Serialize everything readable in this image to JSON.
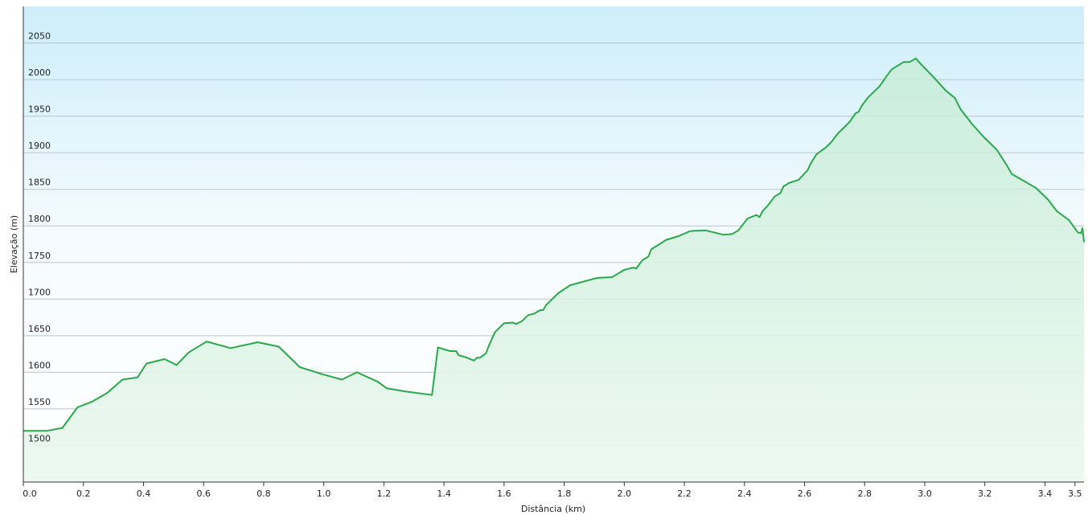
{
  "chart_data": {
    "type": "area-line",
    "x_label": "Distância  (km)",
    "y_label": "Elevação (m)",
    "color": "#2aa84a",
    "xlim": [
      0,
      3.53
    ],
    "ylim": [
      1450,
      2100
    ],
    "xticks": [
      {
        "value": 0,
        "label": "0.0"
      },
      0.2,
      0.4,
      0.6,
      0.8,
      {
        "value": 1,
        "label": "1.0"
      },
      1.2,
      1.4,
      1.6,
      1.8,
      {
        "value": 2,
        "label": "2.0"
      },
      2.2,
      2.4,
      2.6,
      2.8,
      {
        "value": 3,
        "label": "3.0"
      },
      3.2,
      3.4,
      3.5
    ],
    "yticks": [
      1500,
      1550,
      1600,
      1650,
      1700,
      1750,
      1800,
      1850,
      1900,
      1950,
      2000,
      2050
    ],
    "grid": true,
    "x": [
      0,
      0.08,
      0.13,
      0.18,
      0.23,
      0.28,
      0.33,
      0.38,
      0.41,
      0.47,
      0.51,
      0.55,
      0.61,
      0.69,
      0.78,
      0.85,
      0.92,
      0.99,
      1.06,
      1.11,
      1.18,
      1.21,
      1.27,
      1.36,
      1.38,
      1.42,
      1.44,
      1.45,
      1.47,
      1.5,
      1.51,
      1.52,
      1.54,
      1.55,
      1.57,
      1.6,
      1.63,
      1.64,
      1.66,
      1.68,
      1.7,
      1.72,
      1.73,
      1.74,
      1.78,
      1.82,
      1.91,
      1.96,
      2.0,
      2.03,
      2.04,
      2.06,
      2.08,
      2.09,
      2.14,
      2.18,
      2.22,
      2.27,
      2.33,
      2.36,
      2.38,
      2.41,
      2.44,
      2.45,
      2.46,
      2.48,
      2.5,
      2.52,
      2.53,
      2.55,
      2.58,
      2.61,
      2.62,
      2.64,
      2.67,
      2.69,
      2.71,
      2.75,
      2.77,
      2.78,
      2.79,
      2.81,
      2.85,
      2.87,
      2.89,
      2.93,
      2.95,
      2.97,
      2.99,
      3.03,
      3.07,
      3.1,
      3.12,
      3.16,
      3.2,
      3.24,
      3.27,
      3.29,
      3.37,
      3.41,
      3.44,
      3.48,
      3.51,
      3.52,
      3.525,
      3.53
    ],
    "values": [
      1520,
      1520,
      1524,
      1552,
      1560,
      1572,
      1590,
      1593,
      1612,
      1618,
      1610,
      1627,
      1642,
      1633,
      1641,
      1635,
      1607,
      1598,
      1590,
      1600,
      1587,
      1578,
      1574,
      1569,
      1634,
      1629,
      1629,
      1623,
      1621,
      1616,
      1620,
      1620,
      1626,
      1637,
      1655,
      1667,
      1668,
      1666,
      1670,
      1678,
      1680,
      1685,
      1685,
      1692,
      1708,
      1719,
      1729,
      1730,
      1740,
      1743,
      1742,
      1753,
      1758,
      1768,
      1781,
      1786,
      1793,
      1794,
      1788,
      1789,
      1794,
      1810,
      1815,
      1812,
      1820,
      1829,
      1840,
      1845,
      1854,
      1859,
      1863,
      1876,
      1885,
      1898,
      1907,
      1915,
      1926,
      1942,
      1954,
      1956,
      1964,
      1975,
      1991,
      2003,
      2014,
      2024,
      2024,
      2029,
      2020,
      2003,
      1985,
      1975,
      1959,
      1938,
      1920,
      1904,
      1885,
      1871,
      1852,
      1836,
      1820,
      1808,
      1791,
      1790,
      1797,
      1778
    ]
  }
}
